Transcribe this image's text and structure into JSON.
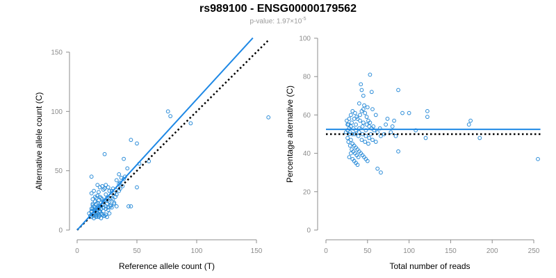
{
  "header": {
    "title": "rs989100 - ENSG00000179562",
    "pvalue_label": "p-value: 1.97×10",
    "pvalue_exp": "-5"
  },
  "colors": {
    "points": "#2b8cd8",
    "fit_line": "#1e88e5",
    "reference_line": "#000000",
    "axis": "#8c8c8c"
  },
  "chart_data": [
    {
      "type": "scatter",
      "title": "",
      "xlabel": "Reference allele count (T)",
      "ylabel": "Alternative allele count (C)",
      "xlim": [
        0,
        150
      ],
      "ylim": [
        0,
        150
      ],
      "xticks": [
        0,
        50,
        100,
        150
      ],
      "yticks": [
        0,
        50,
        100,
        150
      ],
      "grid": false,
      "fit_line": {
        "x": [
          0,
          147
        ],
        "y": [
          0,
          162
        ],
        "style": "solid"
      },
      "reference_line": {
        "x": [
          0,
          160
        ],
        "y": [
          0,
          160
        ],
        "style": "dotted"
      },
      "points": [
        [
          12,
          45
        ],
        [
          14,
          33
        ],
        [
          12,
          31
        ],
        [
          15,
          28
        ],
        [
          17,
          29
        ],
        [
          16,
          22
        ],
        [
          18,
          25
        ],
        [
          14,
          20
        ],
        [
          13,
          18
        ],
        [
          15,
          17
        ],
        [
          12,
          15
        ],
        [
          14,
          14
        ],
        [
          16,
          13
        ],
        [
          18,
          12
        ],
        [
          19,
          16
        ],
        [
          20,
          18
        ],
        [
          21,
          21
        ],
        [
          22,
          24
        ],
        [
          19,
          20
        ],
        [
          17,
          19
        ],
        [
          13,
          22
        ],
        [
          11,
          12
        ],
        [
          10,
          14
        ],
        [
          12,
          11
        ],
        [
          14,
          10
        ],
        [
          16,
          11
        ],
        [
          18,
          13
        ],
        [
          20,
          14
        ],
        [
          22,
          16
        ],
        [
          24,
          18
        ],
        [
          26,
          19
        ],
        [
          28,
          20
        ],
        [
          25,
          22
        ],
        [
          23,
          25
        ],
        [
          27,
          24
        ],
        [
          30,
          26
        ],
        [
          32,
          28
        ],
        [
          31,
          31
        ],
        [
          29,
          33
        ],
        [
          24,
          30
        ],
        [
          22,
          34
        ],
        [
          19,
          36
        ],
        [
          17,
          38
        ],
        [
          21,
          37
        ],
        [
          23,
          35
        ],
        [
          26,
          36
        ],
        [
          24,
          38
        ],
        [
          18,
          32
        ],
        [
          15,
          24
        ],
        [
          13,
          26
        ],
        [
          16,
          27
        ],
        [
          20,
          27
        ],
        [
          25,
          27
        ],
        [
          28,
          29
        ],
        [
          33,
          30
        ],
        [
          35,
          33
        ],
        [
          36,
          35
        ],
        [
          38,
          37
        ],
        [
          35,
          39
        ],
        [
          33,
          42
        ],
        [
          37,
          44
        ],
        [
          39,
          43
        ],
        [
          35,
          47
        ],
        [
          23,
          64
        ],
        [
          39,
          60
        ],
        [
          42,
          52
        ],
        [
          45,
          76
        ],
        [
          50,
          73
        ],
        [
          52,
          56
        ],
        [
          60,
          58
        ],
        [
          76,
          100
        ],
        [
          78,
          96
        ],
        [
          95,
          90
        ],
        [
          50,
          36
        ],
        [
          45,
          20
        ],
        [
          43,
          20
        ],
        [
          33,
          20
        ],
        [
          29,
          19
        ],
        [
          31,
          23
        ],
        [
          27,
          14
        ],
        [
          24,
          13
        ],
        [
          22,
          12
        ],
        [
          20,
          10
        ],
        [
          18,
          11
        ],
        [
          16,
          12
        ],
        [
          15,
          16
        ],
        [
          17,
          17
        ],
        [
          19,
          15
        ],
        [
          21,
          13
        ],
        [
          23,
          12
        ],
        [
          25,
          11
        ],
        [
          13,
          13
        ],
        [
          12,
          16
        ],
        [
          14,
          17
        ],
        [
          17,
          14
        ],
        [
          20,
          20
        ],
        [
          22,
          19
        ],
        [
          26,
          25
        ],
        [
          29,
          27
        ],
        [
          34,
          36
        ],
        [
          36,
          40
        ],
        [
          40,
          45
        ],
        [
          30,
          35
        ],
        [
          27,
          33
        ],
        [
          31,
          22
        ],
        [
          28,
          21
        ],
        [
          26,
          17
        ],
        [
          18,
          20
        ],
        [
          16,
          15
        ],
        [
          14,
          12
        ],
        [
          12,
          18
        ],
        [
          13,
          21
        ],
        [
          15,
          19
        ],
        [
          18,
          18
        ],
        [
          20,
          23
        ],
        [
          24,
          20
        ],
        [
          21,
          26
        ],
        [
          19,
          28
        ],
        [
          17,
          23
        ],
        [
          160,
          95
        ]
      ]
    },
    {
      "type": "scatter",
      "title": "",
      "xlabel": "Total number of reads",
      "ylabel": "Percentage alternative (C)",
      "xlim": [
        0,
        250
      ],
      "ylim": [
        0,
        100
      ],
      "xticks": [
        0,
        50,
        100,
        150,
        200,
        250
      ],
      "yticks": [
        0,
        20,
        40,
        60,
        80,
        100
      ],
      "grid": false,
      "fit_line": {
        "x": [
          0,
          258
        ],
        "y": [
          52.5,
          52.5
        ],
        "style": "solid"
      },
      "reference_line": {
        "x": [
          0,
          258
        ],
        "y": [
          50,
          50
        ],
        "style": "dotted"
      },
      "points": [
        [
          53,
          81
        ],
        [
          42,
          76
        ],
        [
          43,
          73
        ],
        [
          45,
          70
        ],
        [
          55,
          72
        ],
        [
          87,
          73
        ],
        [
          40,
          66
        ],
        [
          46,
          65
        ],
        [
          50,
          64
        ],
        [
          56,
          63
        ],
        [
          60,
          60
        ],
        [
          122,
          62
        ],
        [
          30,
          60
        ],
        [
          32,
          62
        ],
        [
          35,
          61
        ],
        [
          38,
          58
        ],
        [
          28,
          58
        ],
        [
          25,
          57
        ],
        [
          27,
          55
        ],
        [
          30,
          54
        ],
        [
          33,
          53
        ],
        [
          36,
          52
        ],
        [
          40,
          51
        ],
        [
          44,
          50
        ],
        [
          48,
          49
        ],
        [
          52,
          48
        ],
        [
          56,
          47
        ],
        [
          60,
          46
        ],
        [
          28,
          50
        ],
        [
          26,
          48
        ],
        [
          30,
          47
        ],
        [
          32,
          45
        ],
        [
          34,
          44
        ],
        [
          36,
          43
        ],
        [
          38,
          42
        ],
        [
          40,
          41
        ],
        [
          42,
          40
        ],
        [
          44,
          39
        ],
        [
          46,
          38
        ],
        [
          48,
          37
        ],
        [
          50,
          36
        ],
        [
          30,
          40
        ],
        [
          28,
          38
        ],
        [
          32,
          37
        ],
        [
          34,
          36
        ],
        [
          36,
          35
        ],
        [
          38,
          34
        ],
        [
          62,
          32
        ],
        [
          66,
          30
        ],
        [
          87,
          41
        ],
        [
          65,
          53
        ],
        [
          70,
          50
        ],
        [
          72,
          55
        ],
        [
          74,
          58
        ],
        [
          78,
          51
        ],
        [
          80,
          54
        ],
        [
          82,
          57
        ],
        [
          84,
          49
        ],
        [
          92,
          61
        ],
        [
          100,
          61
        ],
        [
          108,
          52
        ],
        [
          120,
          48
        ],
        [
          122,
          59
        ],
        [
          172,
          55
        ],
        [
          174,
          57
        ],
        [
          185,
          48
        ],
        [
          255,
          37
        ],
        [
          26,
          52
        ],
        [
          28,
          53
        ],
        [
          31,
          56
        ],
        [
          34,
          58
        ],
        [
          37,
          59
        ],
        [
          41,
          57
        ],
        [
          45,
          56
        ],
        [
          49,
          55
        ],
        [
          52,
          54
        ],
        [
          55,
          53
        ],
        [
          58,
          52
        ],
        [
          35,
          50
        ],
        [
          39,
          49
        ],
        [
          43,
          47
        ],
        [
          47,
          46
        ],
        [
          51,
          45
        ],
        [
          27,
          46
        ],
        [
          29,
          44
        ],
        [
          31,
          42
        ],
        [
          33,
          41
        ],
        [
          35,
          40
        ],
        [
          37,
          39
        ],
        [
          39,
          38
        ],
        [
          41,
          60
        ],
        [
          43,
          62
        ],
        [
          45,
          63
        ],
        [
          47,
          61
        ],
        [
          49,
          59
        ],
        [
          51,
          57
        ],
        [
          53,
          56
        ],
        [
          57,
          54
        ],
        [
          62,
          51
        ],
        [
          66,
          49
        ],
        [
          24,
          51
        ],
        [
          26,
          55
        ],
        [
          29,
          51
        ],
        [
          32,
          50
        ],
        [
          36,
          55
        ],
        [
          40,
          53
        ],
        [
          44,
          54
        ],
        [
          48,
          52
        ],
        [
          54,
          50
        ]
      ]
    }
  ]
}
